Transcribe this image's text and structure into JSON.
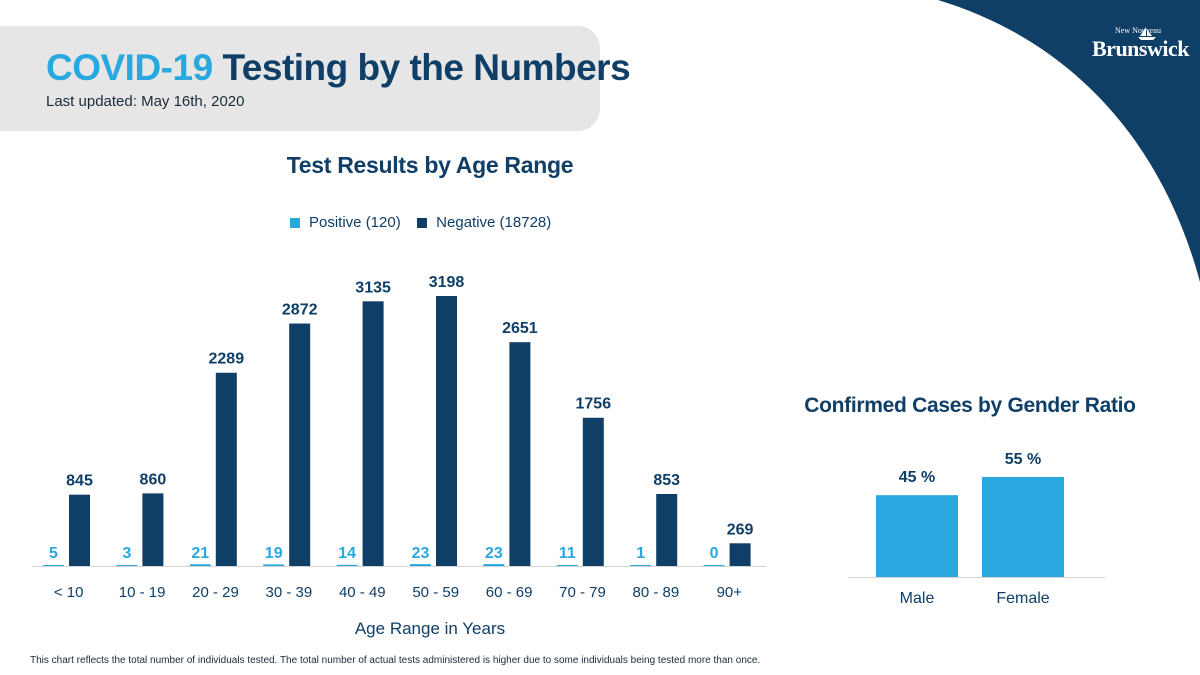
{
  "header": {
    "title_part1": "COVID-19",
    "title_part2": "Testing by the Numbers",
    "subtitle": "Last updated: May 16th, 2020"
  },
  "logo": {
    "text_top": "New  Nouveau",
    "text_main": "Brunswick"
  },
  "colors": {
    "positive": "#29a8e0",
    "negative": "#0f3e66",
    "header_bg": "#e6e6e6",
    "corner": "#0f3e66"
  },
  "footnote": "This chart reflects the total number of individuals tested. The total number of actual tests administered is higher due to some individuals being tested more than once.",
  "chart_data": [
    {
      "type": "bar",
      "title": "Test Results by Age Range",
      "xlabel": "Age Range in Years",
      "ylabel": "",
      "categories": [
        "< 10",
        "10 - 19",
        "20 - 29",
        "30 - 39",
        "40 - 49",
        "50 - 59",
        "60 - 69",
        "70 - 79",
        "80 - 89",
        "90+"
      ],
      "series": [
        {
          "name": "Positive (120)",
          "color": "#29a8e0",
          "values": [
            5,
            3,
            21,
            19,
            14,
            23,
            23,
            11,
            1,
            0
          ]
        },
        {
          "name": "Negative (18728)",
          "color": "#0f3e66",
          "values": [
            845,
            860,
            2289,
            2872,
            3135,
            3198,
            2651,
            1756,
            853,
            269
          ]
        }
      ],
      "ylim": [
        0,
        3198
      ],
      "grid": false,
      "legend": "top-center",
      "data_labels": true
    },
    {
      "type": "bar",
      "title": "Confirmed Cases by Gender Ratio",
      "categories": [
        "Male",
        "Female"
      ],
      "values": [
        45,
        55
      ],
      "value_labels": [
        "45 %",
        "55 %"
      ],
      "color": "#29a8e0",
      "ylim": [
        0,
        55
      ],
      "grid": false
    }
  ]
}
